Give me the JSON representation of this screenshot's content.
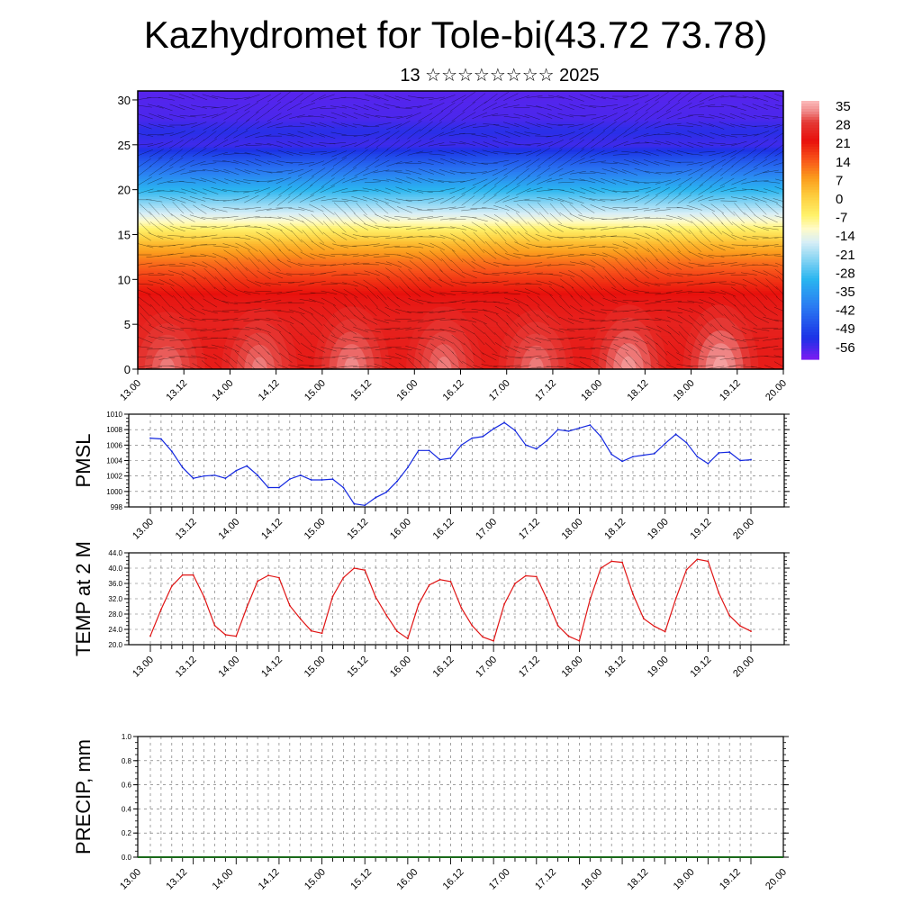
{
  "title": "Kazhydromet for Tole-bi(43.72 73.78)",
  "subtitle": "13 ☆☆☆☆☆☆☆☆ 2025",
  "chart_data": [
    {
      "type": "heatmap",
      "name": "cross-section",
      "x_tick_labels": [
        "13.00",
        "13.12",
        "14.00",
        "14.12",
        "15.00",
        "15.12",
        "16.00",
        "16.12",
        "17.00",
        "17.12",
        "18.00",
        "18.12",
        "19.00",
        "19.12",
        "20.00"
      ],
      "ylim": [
        0,
        31
      ],
      "y_ticks": [
        0,
        5,
        10,
        15,
        20,
        25,
        30
      ],
      "colorbar_labels": [
        "35",
        "28",
        "21",
        "14",
        "7",
        "0",
        "-7",
        "-14",
        "-21",
        "-28",
        "-35",
        "-42",
        "-49",
        "-56"
      ],
      "colorbar_range": [
        -60,
        37
      ],
      "colors": {
        "cold": "#7b1cf2",
        "blue": "#1c32e6",
        "cyan": "#2ab6f0",
        "pale": "#d8eef6",
        "yellow": "#fff26a",
        "orange": "#fb9b1d",
        "red": "#e8100c",
        "pink": "#fbbcbc"
      },
      "profile": [
        {
          "h": 0,
          "t": 24
        },
        {
          "h": 2,
          "t": 24
        },
        {
          "h": 5,
          "t": 25
        },
        {
          "h": 8,
          "t": 23
        },
        {
          "h": 10,
          "t": 18
        },
        {
          "h": 12,
          "t": 12
        },
        {
          "h": 14,
          "t": 4
        },
        {
          "h": 15.5,
          "t": -5
        },
        {
          "h": 17,
          "t": -14
        },
        {
          "h": 18.5,
          "t": -22
        },
        {
          "h": 20,
          "t": -30
        },
        {
          "h": 22,
          "t": -40
        },
        {
          "h": 23.5,
          "t": -47
        },
        {
          "h": 25,
          "t": -55
        },
        {
          "h": 26.5,
          "t": -53
        },
        {
          "h": 28,
          "t": -56
        },
        {
          "h": 31,
          "t": -57
        }
      ],
      "warm_bubbles": [
        {
          "x": 0.32,
          "h": 3.2,
          "t": 34
        },
        {
          "x": 1.32,
          "h": 3.4,
          "t": 34
        },
        {
          "x": 2.32,
          "h": 3.5,
          "t": 35
        },
        {
          "x": 3.32,
          "h": 3.5,
          "t": 34
        },
        {
          "x": 4.32,
          "h": 3.3,
          "t": 34
        },
        {
          "x": 5.32,
          "h": 3.6,
          "t": 36
        },
        {
          "x": 6.32,
          "h": 3.6,
          "t": 37
        }
      ]
    },
    {
      "type": "line",
      "ylabel": "PMSL",
      "x_tick_labels": [
        "13.00",
        "13.12",
        "14.00",
        "14.12",
        "15.00",
        "15.12",
        "16.00",
        "16.12",
        "17.00",
        "17.12",
        "18.00",
        "18.12",
        "19.00",
        "19.12",
        "20.00"
      ],
      "y_tick_labels": [
        "998",
        "1000",
        "1002",
        "1004",
        "1006",
        "1008",
        "1010"
      ],
      "ylim": [
        998,
        1010
      ],
      "x_start": 0,
      "x_step": 3,
      "color": "#1428e0",
      "values": [
        1006.9,
        1006.8,
        1005.2,
        1003.1,
        1001.7,
        1002.0,
        1002.1,
        1001.7,
        1002.7,
        1003.3,
        1002.1,
        1000.5,
        1000.5,
        1001.6,
        1002.1,
        1001.5,
        1001.5,
        1001.6,
        1000.5,
        998.4,
        998.2,
        999.2,
        999.9,
        1001.3,
        1003.1,
        1005.3,
        1005.3,
        1004.1,
        1004.3,
        1006.0,
        1006.9,
        1007.1,
        1008.1,
        1008.9,
        1007.9,
        1006.0,
        1005.5,
        1006.6,
        1008.0,
        1007.8,
        1008.2,
        1008.6,
        1007.1,
        1004.8,
        1003.9,
        1004.5,
        1004.7,
        1004.9,
        1006.2,
        1007.4,
        1006.3,
        1004.5,
        1003.6,
        1005.0,
        1005.1,
        1004.0,
        1004.1
      ]
    },
    {
      "type": "line",
      "ylabel": "TEMP at 2 M",
      "x_tick_labels": [
        "13.00",
        "13.12",
        "14.00",
        "14.12",
        "15.00",
        "15.12",
        "16.00",
        "16.12",
        "17.00",
        "17.12",
        "18.00",
        "18.12",
        "19.00",
        "19.12",
        "20.00"
      ],
      "y_tick_labels": [
        "20.0",
        "24.0",
        "28.0",
        "32.0",
        "36.0",
        "40.0",
        "44.0"
      ],
      "ylim": [
        20,
        44
      ],
      "x_start": 0,
      "x_step": 3,
      "color": "#e01414",
      "values": [
        22.3,
        29.2,
        35.3,
        38.2,
        38.2,
        32.5,
        25.0,
        22.6,
        22.2,
        29.8,
        36.6,
        38.1,
        37.5,
        30.2,
        26.7,
        23.6,
        23.0,
        32.6,
        37.5,
        40.0,
        39.5,
        32.5,
        27.8,
        23.5,
        21.6,
        30.5,
        35.6,
        37.0,
        36.5,
        29.6,
        25.0,
        22.0,
        21.0,
        30.6,
        36.0,
        38.0,
        37.8,
        31.8,
        25.0,
        22.2,
        21.0,
        31.8,
        40.0,
        41.8,
        41.5,
        33.2,
        26.8,
        24.8,
        23.4,
        32.0,
        39.6,
        42.3,
        41.8,
        33.5,
        27.6,
        24.9,
        23.5
      ]
    },
    {
      "type": "bar",
      "ylabel": "PRECIP, mm",
      "x_tick_labels": [
        "13.00",
        "13.12",
        "14.00",
        "14.12",
        "15.00",
        "15.12",
        "16.00",
        "16.12",
        "17.00",
        "17.12",
        "18.00",
        "18.12",
        "19.00",
        "19.12",
        "20.00"
      ],
      "y_tick_labels": [
        "0.0",
        "0.2",
        "0.4",
        "0.6",
        "0.8",
        "1.0"
      ],
      "ylim": [
        0,
        1
      ],
      "values": [],
      "color": "#1a6b1a"
    }
  ]
}
